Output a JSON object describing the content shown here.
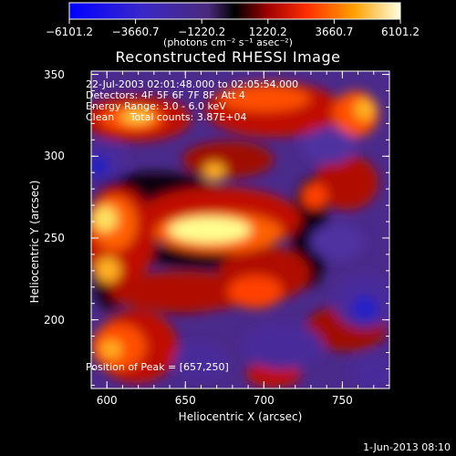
{
  "colorbar": {
    "ticks": [
      "−6101.2",
      "−3660.7",
      "−1220.2",
      "1220.2",
      "3660.7",
      "6101.2"
    ],
    "unit_text": "(photons cm⁻² s⁻¹ asec⁻²)",
    "range": [
      -6101.2,
      6101.2
    ]
  },
  "chart_data": {
    "type": "heatmap",
    "title": "Reconstructed RHESSI Image",
    "xlabel": "Heliocentric X (arcsec)",
    "ylabel": "Heliocentric Y (arcsec)",
    "xlim": [
      590,
      780
    ],
    "ylim": [
      158,
      352
    ],
    "xticks": [
      "600",
      "650",
      "700",
      "750"
    ],
    "yticks": [
      "200",
      "250",
      "300",
      "350"
    ],
    "xtick_values": [
      600,
      650,
      700,
      750
    ],
    "ytick_values": [
      200,
      250,
      300,
      350
    ],
    "peak": [
      657,
      250
    ],
    "colors": {
      "negative": "#5a2aa0",
      "positive": "#ffff80",
      "zero": "#000000"
    }
  },
  "annotations": {
    "time_range": "22-Jul-2003 02:01:48.000 to 02:05:54.000",
    "detectors": "Detectors: 4F 5F 6F 7F 8F, Att 4",
    "energy": "Energy Range: 3.0 - 6.0 keV",
    "clean": "Clean     Total counts: 3.87E+04",
    "peak_text": "Position of Peak = [657,250]"
  },
  "footer": {
    "date": "1-Jun-2013 08:10"
  }
}
